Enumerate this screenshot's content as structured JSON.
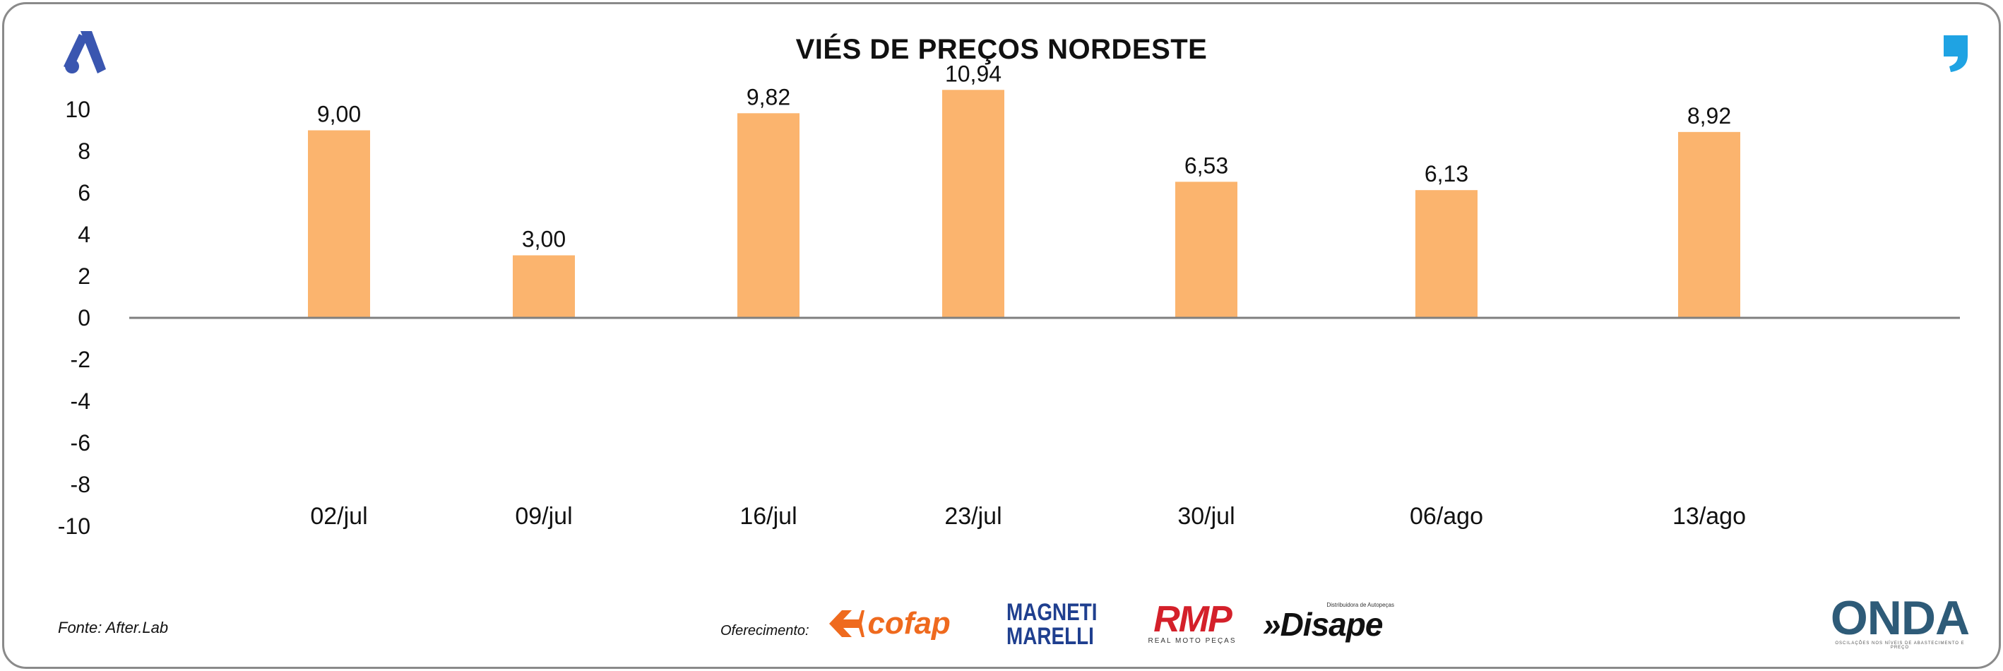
{
  "chart_data": {
    "type": "bar",
    "title": "VIÉS DE PREÇOS NORDESTE",
    "categories": [
      "02/jul",
      "09/jul",
      "16/jul",
      "23/jul",
      "30/jul",
      "06/ago",
      "13/ago"
    ],
    "values": [
      9.0,
      3.0,
      9.82,
      10.94,
      6.53,
      6.13,
      8.92
    ],
    "value_labels": [
      "9,00",
      "3,00",
      "9,82",
      "10,94",
      "6,53",
      "6,13",
      "8,92"
    ],
    "ylim": [
      -10,
      10
    ],
    "yticks": [
      "10",
      "8",
      "6",
      "4",
      "2",
      "0",
      "-2",
      "-4",
      "-6",
      "-8",
      "-10"
    ],
    "ytick_values": [
      10,
      8,
      6,
      4,
      2,
      0,
      -2,
      -4,
      -6,
      -8,
      -10
    ],
    "xlabel": "",
    "ylabel": "",
    "bar_color": "#fbb46e",
    "axis_color": "#7f7f7f",
    "grid": false,
    "legend": "none"
  },
  "footer": {
    "source": "Fonte: After.Lab",
    "offer": "Oferecimento:",
    "sponsors": {
      "cofap": "cofap",
      "magneti_line1": "MAGNETI",
      "magneti_line2": "MARELLI",
      "rmp": "RMP",
      "rmp_sub": "REAL MOTO PEÇAS",
      "disape": "»Disape",
      "disape_sub": "Distribuidora de Autopeças",
      "onda": "ONDA",
      "onda_sub": "OSCILAÇÕES NOS NÍVEIS DE ABASTECIMENTO E PREÇO"
    }
  },
  "colors": {
    "brand_blue": "#3a56b0",
    "quote_blue": "#1fa3e3",
    "cofap_orange": "#ef6a1e",
    "rmp_red": "#d4202a"
  },
  "icons": {
    "brand_logo": "a-logo-icon",
    "quote": "quote-icon"
  }
}
